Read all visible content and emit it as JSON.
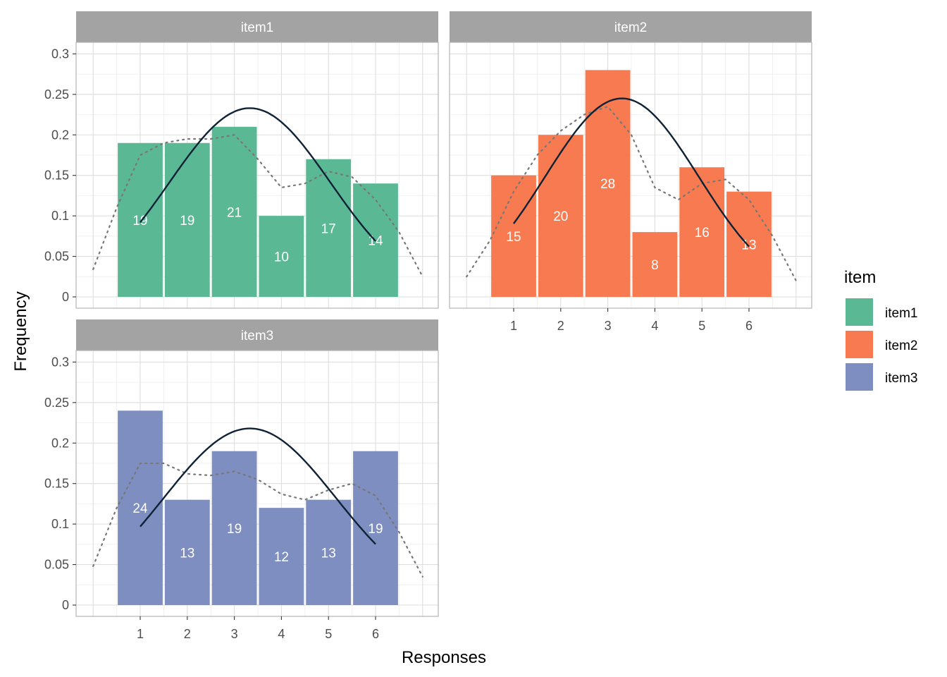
{
  "chart_data": {
    "type": "bar",
    "xlabel": "Responses",
    "ylabel": "Frequency",
    "x_ticks": [
      "1",
      "2",
      "3",
      "4",
      "5",
      "6"
    ],
    "y_ticks": [
      "0",
      "0.05",
      "0.1",
      "0.15",
      "0.2",
      "0.25",
      "0.3"
    ],
    "ylim": [
      0,
      0.3
    ],
    "xlim": [
      0.5,
      6.5
    ],
    "grid": true,
    "legend": {
      "title": "item",
      "position": "right",
      "entries": [
        {
          "label": "item1",
          "color": "#5ab994"
        },
        {
          "label": "item2",
          "color": "#f87a50"
        },
        {
          "label": "item3",
          "color": "#7e8ec0"
        }
      ]
    },
    "panels": [
      {
        "title": "item1",
        "color": "#5ab994",
        "categories": [
          1,
          2,
          3,
          4,
          5,
          6
        ],
        "values": [
          0.19,
          0.19,
          0.21,
          0.1,
          0.17,
          0.14
        ],
        "labels": [
          "19",
          "19",
          "21",
          "10",
          "17",
          "14"
        ],
        "normal_curve": {
          "mean": 3.33,
          "sd": 1.71,
          "peak": 0.233
        },
        "density": {
          "x": [
            0.0,
            0.5,
            1.0,
            1.5,
            2.0,
            2.5,
            3.0,
            3.5,
            4.0,
            4.5,
            5.0,
            5.5,
            6.0,
            6.5,
            7.0
          ],
          "y": [
            0.034,
            0.11,
            0.175,
            0.19,
            0.195,
            0.195,
            0.2,
            0.17,
            0.135,
            0.14,
            0.155,
            0.148,
            0.12,
            0.08,
            0.025
          ]
        }
      },
      {
        "title": "item2",
        "color": "#f87a50",
        "categories": [
          1,
          2,
          3,
          4,
          5,
          6
        ],
        "values": [
          0.15,
          0.2,
          0.28,
          0.08,
          0.16,
          0.13
        ],
        "labels": [
          "15",
          "20",
          "28",
          "8",
          "16",
          "13"
        ],
        "normal_curve": {
          "mean": 3.3,
          "sd": 1.63,
          "peak": 0.245
        },
        "density": {
          "x": [
            0.0,
            0.5,
            1.0,
            1.5,
            2.0,
            2.5,
            3.0,
            3.5,
            4.0,
            4.5,
            5.0,
            5.5,
            6.0,
            6.5,
            7.0
          ],
          "y": [
            0.025,
            0.07,
            0.13,
            0.175,
            0.205,
            0.225,
            0.235,
            0.2,
            0.135,
            0.12,
            0.14,
            0.145,
            0.12,
            0.075,
            0.02
          ]
        }
      },
      {
        "title": "item3",
        "color": "#7e8ec0",
        "categories": [
          1,
          2,
          3,
          4,
          5,
          6
        ],
        "values": [
          0.24,
          0.13,
          0.19,
          0.12,
          0.13,
          0.19
        ],
        "labels": [
          "24",
          "13",
          "19",
          "12",
          "13",
          "19"
        ],
        "normal_curve": {
          "mean": 3.33,
          "sd": 1.83,
          "peak": 0.218
        },
        "density": {
          "x": [
            0.0,
            0.5,
            1.0,
            1.5,
            2.0,
            2.5,
            3.0,
            3.5,
            4.0,
            4.5,
            5.0,
            5.5,
            6.0,
            6.5,
            7.0
          ],
          "y": [
            0.048,
            0.12,
            0.175,
            0.175,
            0.162,
            0.16,
            0.165,
            0.155,
            0.137,
            0.13,
            0.142,
            0.15,
            0.135,
            0.09,
            0.035
          ]
        }
      }
    ]
  }
}
